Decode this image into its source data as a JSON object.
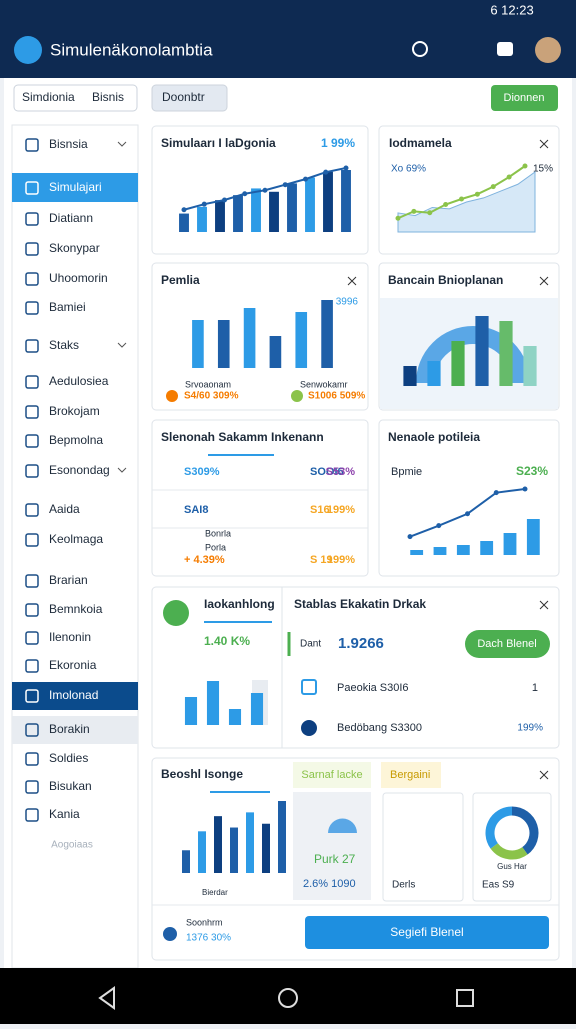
{
  "status": {
    "time": "6 12:23"
  },
  "header": {
    "title": "Simulenäkonolambtia"
  },
  "toolbar": {
    "tab1": "Simdionia",
    "tab2": "Bisnis",
    "dropdown": "Doonbtr",
    "button": "Dionnen"
  },
  "sidebar": {
    "items": [
      "Bisnsia",
      "Simulajari",
      "Diatiann",
      "Skonypar",
      "Uhoomorin",
      "Bamiei",
      "Staks",
      "Aedulosiea",
      "Brokojam",
      "Bepmolna",
      "Esonondag",
      "Aaida",
      "Keolmaga",
      "Brarian",
      "Bemnkoia",
      "Ilenonin",
      "Ekoronia",
      "Imolonad",
      "Borakin",
      "Soldies",
      "Bisukan",
      "Kania",
      "Aogoiaas"
    ]
  },
  "cards": {
    "simulation": {
      "title": "Simulaarı I laDgonia",
      "badge": "1 99%",
      "bars": [
        22,
        30,
        38,
        44,
        52,
        48,
        58,
        65,
        72,
        74
      ],
      "line": [
        32,
        40,
        46,
        55,
        60,
        68,
        76,
        86,
        92
      ]
    },
    "trend": {
      "title": "Iodmamela",
      "legend": "Xo 69%",
      "badge": "15%",
      "area": [
        28,
        24,
        36,
        34,
        44,
        50,
        60,
        70,
        88
      ],
      "line": [
        20,
        30,
        28,
        40,
        48,
        55,
        66,
        80,
        96
      ]
    },
    "premium": {
      "title": "Pemlia",
      "badge": "3996",
      "bars": [
        60,
        60,
        75,
        40,
        70,
        85
      ],
      "legend1": "Srvoaonam",
      "legend2": "Senwokamr",
      "stat1": "S4/60 309%",
      "stat2": "S1006 509%"
    },
    "planning": {
      "title": "Bancain Bnioplanan",
      "bars": [
        20,
        25,
        45,
        70,
        65,
        40
      ]
    },
    "summary": {
      "title": "Slenonah Sakamm Inkenann",
      "rows": [
        [
          "S309%",
          "SOOI6",
          "S53%"
        ],
        [
          "SAI8",
          "S16",
          "199%"
        ],
        [
          "+ 4.39%",
          "S 19",
          "199%"
        ]
      ],
      "sub1": "Bonrla",
      "sub2": "Porla"
    },
    "profile": {
      "title": "Nenaole potileia",
      "label": "Bpmie",
      "badge": "S23%",
      "bars": [
        5,
        8,
        10,
        14,
        22,
        36
      ],
      "line": [
        20,
        32,
        45,
        68,
        72
      ]
    },
    "tracking": {
      "title": "Iaokanhlong",
      "value": "1.40 K%",
      "bars": [
        35,
        55,
        20,
        40
      ]
    },
    "status": {
      "title": "Stablas Ekakatin Drkak",
      "label": "Dant",
      "value": "1.9266",
      "button": "Dach Blenel",
      "row1": "Paeokia S30I6",
      "row1b": "1",
      "row2": "Bedöbang S3300",
      "row2b": "199%"
    },
    "bench": {
      "title": "Beoshl Isonge",
      "tag": "Sarnaf lacke",
      "tag2": "Bergaini",
      "bars": [
        30,
        55,
        75,
        60,
        80,
        65,
        95
      ],
      "axis": "Bierdar",
      "stat": "Purk 27",
      "stat2": "2.6% 1090",
      "box": "Derls",
      "donut": [
        40,
        25,
        35
      ],
      "donut_label": "Gus Har",
      "donut_stat": "Eas S9",
      "foot1": "Soonhrm",
      "foot2": "1376 30%",
      "button": "Segiefi Blenel"
    }
  }
}
